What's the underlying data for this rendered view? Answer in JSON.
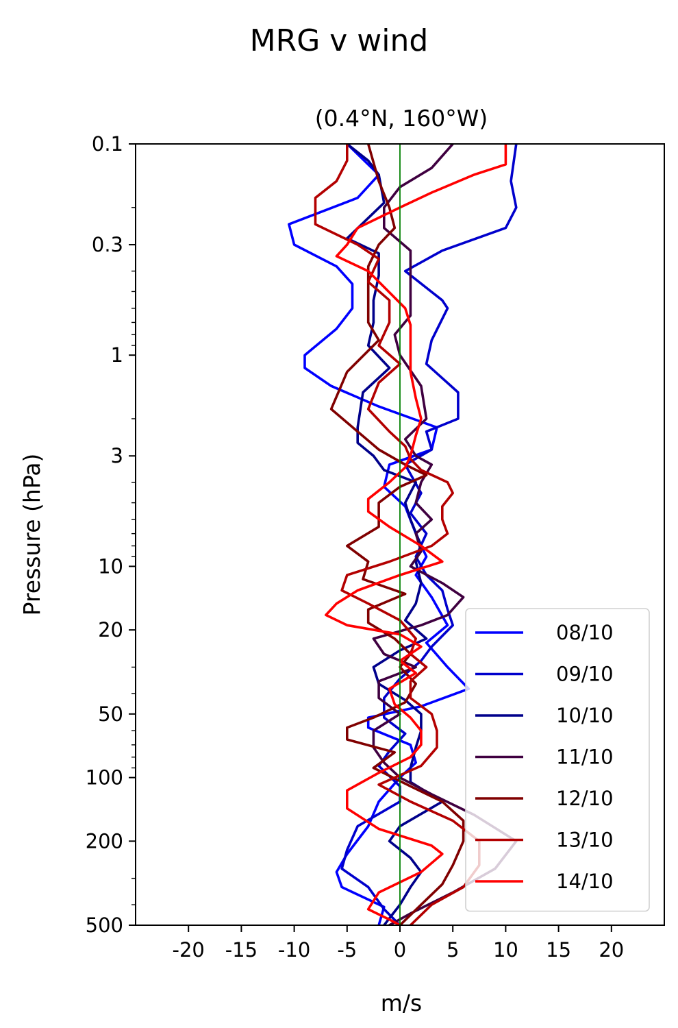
{
  "chart_data": {
    "type": "line",
    "title": "MRG v wind",
    "subtitle": "(0.4°N, 160°W)",
    "xlabel": "m/s",
    "ylabel": "Pressure (hPa)",
    "xlim": [
      -25,
      25
    ],
    "ylim": [
      500,
      0.1
    ],
    "y_scale": "log",
    "x_ticks": [
      -20,
      -15,
      -10,
      -5,
      0,
      5,
      10,
      15,
      20
    ],
    "x_tick_labels": [
      "-20",
      "-15",
      "-10",
      "-5",
      "0",
      "5",
      "10",
      "15",
      "20"
    ],
    "y_ticks": [
      0.1,
      0.3,
      1,
      3,
      10,
      20,
      50,
      100,
      200,
      500
    ],
    "y_tick_labels": [
      "0.1",
      "0.3",
      "1",
      "3",
      "10",
      "20",
      "50",
      "100",
      "200",
      "500"
    ],
    "zero_line_color": "#008000",
    "legend": {
      "position": "lower-right"
    },
    "series": [
      {
        "name": "08/10",
        "color": "#0000ff",
        "points": [
          [
            -5,
            0.1
          ],
          [
            -2,
            0.14
          ],
          [
            -4,
            0.18
          ],
          [
            -10.5,
            0.24
          ],
          [
            -10,
            0.3
          ],
          [
            -6,
            0.38
          ],
          [
            -4.5,
            0.46
          ],
          [
            -4.5,
            0.6
          ],
          [
            -6,
            0.75
          ],
          [
            -9,
            1
          ],
          [
            -9,
            1.15
          ],
          [
            -6.5,
            1.4
          ],
          [
            -2,
            1.75
          ],
          [
            3.5,
            2.2
          ],
          [
            3,
            2.8
          ],
          [
            -1,
            3.3
          ],
          [
            -1.5,
            4.2
          ],
          [
            0.5,
            5.2
          ],
          [
            1.5,
            7
          ],
          [
            2.5,
            9
          ],
          [
            1.5,
            11
          ],
          [
            3,
            14
          ],
          [
            4.5,
            19
          ],
          [
            2.5,
            23
          ],
          [
            4.5,
            30
          ],
          [
            6.5,
            38
          ],
          [
            2,
            46
          ],
          [
            -3,
            52
          ],
          [
            -3,
            58
          ],
          [
            1,
            70
          ],
          [
            1.5,
            85
          ],
          [
            0,
            100
          ],
          [
            -2,
            130
          ],
          [
            -3,
            170
          ],
          [
            -5,
            230
          ],
          [
            -6,
            280
          ],
          [
            -5.5,
            330
          ],
          [
            -1.5,
            410
          ],
          [
            -2,
            500
          ]
        ]
      },
      {
        "name": "09/10",
        "color": "#0000cc",
        "points": [
          [
            11,
            0.1
          ],
          [
            10.5,
            0.15
          ],
          [
            11,
            0.2
          ],
          [
            10,
            0.25
          ],
          [
            4,
            0.32
          ],
          [
            0.5,
            0.4
          ],
          [
            4,
            0.55
          ],
          [
            4.5,
            0.6
          ],
          [
            3,
            0.85
          ],
          [
            2.5,
            1.1
          ],
          [
            5.5,
            1.5
          ],
          [
            5.5,
            2
          ],
          [
            2.5,
            2.3
          ],
          [
            3,
            2.8
          ],
          [
            0.5,
            3.3
          ],
          [
            2,
            4.5
          ],
          [
            1,
            5.6
          ],
          [
            2.5,
            7
          ],
          [
            1.5,
            9
          ],
          [
            2.5,
            11
          ],
          [
            4,
            13
          ],
          [
            4.5,
            16
          ],
          [
            5,
            19
          ],
          [
            3,
            24
          ],
          [
            2,
            28
          ],
          [
            0,
            34
          ],
          [
            -1.5,
            42
          ],
          [
            -1.5,
            52
          ],
          [
            0.5,
            62
          ],
          [
            -1,
            75
          ],
          [
            -2,
            88
          ],
          [
            0,
            110
          ],
          [
            0,
            130
          ],
          [
            -4,
            170
          ],
          [
            -5,
            220
          ],
          [
            -5.5,
            270
          ],
          [
            -3,
            330
          ],
          [
            -1.5,
            420
          ],
          [
            0,
            500
          ]
        ]
      },
      {
        "name": "10/10",
        "color": "#00008b",
        "points": [
          [
            -5,
            0.1
          ],
          [
            -3,
            0.12
          ],
          [
            -2,
            0.14
          ],
          [
            -1.5,
            0.19
          ],
          [
            -5,
            0.28
          ],
          [
            -2,
            0.33
          ],
          [
            -2,
            0.42
          ],
          [
            -2.5,
            0.55
          ],
          [
            -2.5,
            0.7
          ],
          [
            -3,
            0.9
          ],
          [
            -1,
            1.15
          ],
          [
            -3.5,
            1.5
          ],
          [
            -4,
            2.2
          ],
          [
            -4,
            2.6
          ],
          [
            -2.5,
            3
          ],
          [
            -1.5,
            3.5
          ],
          [
            1.5,
            4
          ],
          [
            0.5,
            5
          ],
          [
            1,
            6
          ],
          [
            2,
            8
          ],
          [
            1.5,
            9.5
          ],
          [
            2,
            12
          ],
          [
            1.5,
            15
          ],
          [
            0.5,
            18
          ],
          [
            2.5,
            22
          ],
          [
            0,
            25
          ],
          [
            -2.5,
            30
          ],
          [
            -2,
            36
          ],
          [
            0.5,
            43
          ],
          [
            2,
            50
          ],
          [
            2,
            60
          ],
          [
            1.5,
            72
          ],
          [
            1,
            90
          ],
          [
            1,
            105
          ],
          [
            4,
            130
          ],
          [
            0,
            170
          ],
          [
            -1,
            200
          ],
          [
            1,
            240
          ],
          [
            2,
            280
          ],
          [
            1,
            330
          ],
          [
            0,
            400
          ],
          [
            -1.5,
            500
          ]
        ]
      },
      {
        "name": "11/10",
        "color": "#3f0040",
        "points": [
          [
            5,
            0.1
          ],
          [
            3,
            0.13
          ],
          [
            0,
            0.16
          ],
          [
            -1.5,
            0.2
          ],
          [
            -1.5,
            0.25
          ],
          [
            1,
            0.32
          ],
          [
            1,
            0.42
          ],
          [
            1,
            0.5
          ],
          [
            1,
            0.65
          ],
          [
            -0.5,
            0.8
          ],
          [
            0,
            1
          ],
          [
            2,
            1.4
          ],
          [
            2.5,
            2
          ],
          [
            0.5,
            2.5
          ],
          [
            1.5,
            3
          ],
          [
            3,
            3.3
          ],
          [
            2,
            4
          ],
          [
            1.5,
            5
          ],
          [
            3,
            6
          ],
          [
            1.5,
            7
          ],
          [
            2,
            8.5
          ],
          [
            1,
            10
          ],
          [
            4,
            12
          ],
          [
            6,
            14
          ],
          [
            4.5,
            17
          ],
          [
            2,
            19
          ],
          [
            -2.5,
            22
          ],
          [
            -1.5,
            26
          ],
          [
            1.5,
            30
          ],
          [
            -2,
            35
          ],
          [
            -2,
            42
          ],
          [
            0,
            50
          ],
          [
            -2.5,
            60
          ],
          [
            -2.5,
            72
          ],
          [
            -1.5,
            85
          ],
          [
            0,
            100
          ],
          [
            3,
            120
          ],
          [
            7,
            150
          ],
          [
            11,
            200
          ],
          [
            9,
            270
          ],
          [
            5,
            350
          ],
          [
            1,
            440
          ],
          [
            -1,
            500
          ]
        ]
      },
      {
        "name": "12/10",
        "color": "#800000",
        "points": [
          [
            -3,
            0.1
          ],
          [
            -2,
            0.15
          ],
          [
            -1,
            0.2
          ],
          [
            -0.5,
            0.25
          ],
          [
            -2,
            0.3
          ],
          [
            -3,
            0.38
          ],
          [
            -3,
            0.45
          ],
          [
            -3,
            0.55
          ],
          [
            -3,
            0.7
          ],
          [
            -2,
            0.85
          ],
          [
            -5,
            1.2
          ],
          [
            -6.5,
            1.8
          ],
          [
            -4,
            2.3
          ],
          [
            -2,
            2.8
          ],
          [
            0.5,
            3.3
          ],
          [
            2.5,
            3.7
          ],
          [
            0,
            4.2
          ],
          [
            -2,
            5
          ],
          [
            -2,
            6.5
          ],
          [
            -5,
            8
          ],
          [
            -3,
            9.5
          ],
          [
            -3.5,
            11.5
          ],
          [
            0.5,
            13.5
          ],
          [
            -3,
            16
          ],
          [
            -3,
            18.5
          ],
          [
            -0.5,
            22
          ],
          [
            1,
            26
          ],
          [
            0,
            30
          ],
          [
            1.5,
            36
          ],
          [
            0.5,
            44
          ],
          [
            -2.5,
            52
          ],
          [
            -5,
            58
          ],
          [
            -5,
            66
          ],
          [
            -0.5,
            76
          ],
          [
            -2.5,
            90
          ],
          [
            1,
            110
          ],
          [
            4,
            130
          ],
          [
            6,
            160
          ],
          [
            6,
            200
          ],
          [
            5,
            260
          ],
          [
            4,
            320
          ],
          [
            2,
            400
          ],
          [
            0,
            500
          ]
        ]
      },
      {
        "name": "13/10",
        "color": "#b30000",
        "points": [
          [
            -5,
            0.1
          ],
          [
            -5,
            0.12
          ],
          [
            -6,
            0.15
          ],
          [
            -8,
            0.18
          ],
          [
            -8,
            0.24
          ],
          [
            -4,
            0.3
          ],
          [
            -2,
            0.35
          ],
          [
            -3,
            0.45
          ],
          [
            -1,
            0.55
          ],
          [
            -1,
            0.7
          ],
          [
            -2,
            0.9
          ],
          [
            0,
            1.1
          ],
          [
            -2,
            1.35
          ],
          [
            -3,
            1.8
          ],
          [
            -1,
            2.3
          ],
          [
            0.5,
            2.7
          ],
          [
            1,
            3.1
          ],
          [
            2,
            3.5
          ],
          [
            4.5,
            4
          ],
          [
            5,
            4.5
          ],
          [
            4,
            5.2
          ],
          [
            4,
            6
          ],
          [
            4.5,
            7
          ],
          [
            3,
            8
          ],
          [
            -1,
            9.5
          ],
          [
            -5,
            11
          ],
          [
            -5.5,
            13
          ],
          [
            -3,
            15
          ],
          [
            0,
            18
          ],
          [
            1.5,
            22
          ],
          [
            1,
            26
          ],
          [
            2.5,
            30
          ],
          [
            1,
            35
          ],
          [
            1,
            42
          ],
          [
            3,
            50
          ],
          [
            3.5,
            60
          ],
          [
            3.5,
            72
          ],
          [
            2,
            88
          ],
          [
            -2,
            108
          ],
          [
            1,
            130
          ],
          [
            5,
            160
          ],
          [
            7.5,
            200
          ],
          [
            7.5,
            260
          ],
          [
            6,
            330
          ],
          [
            3,
            400
          ],
          [
            1,
            500
          ]
        ]
      },
      {
        "name": "14/10",
        "color": "#ff0000",
        "points": [
          [
            10,
            0.1
          ],
          [
            10,
            0.125
          ],
          [
            7,
            0.14
          ],
          [
            3,
            0.17
          ],
          [
            0,
            0.2
          ],
          [
            -4,
            0.25
          ],
          [
            -5,
            0.3
          ],
          [
            -6,
            0.34
          ],
          [
            -3,
            0.4
          ],
          [
            0.5,
            0.6
          ],
          [
            1,
            0.72
          ],
          [
            1,
            0.8
          ],
          [
            1,
            1.2
          ],
          [
            1.5,
            1.6
          ],
          [
            2,
            2
          ],
          [
            1.5,
            2.4
          ],
          [
            1,
            3
          ],
          [
            0.5,
            3.4
          ],
          [
            -1,
            4
          ],
          [
            -3,
            4.8
          ],
          [
            -3,
            5.5
          ],
          [
            -1,
            6.5
          ],
          [
            2,
            8
          ],
          [
            4,
            9.5
          ],
          [
            0,
            11
          ],
          [
            -4,
            13
          ],
          [
            -6,
            15
          ],
          [
            -7,
            17
          ],
          [
            -5,
            19
          ],
          [
            0,
            21
          ],
          [
            2,
            24
          ],
          [
            0,
            28
          ],
          [
            1.5,
            32
          ],
          [
            -1,
            38
          ],
          [
            -0.5,
            45
          ],
          [
            1,
            52
          ],
          [
            2,
            60
          ],
          [
            2,
            70
          ],
          [
            1,
            80
          ],
          [
            -2,
            95
          ],
          [
            -5,
            115
          ],
          [
            -5,
            140
          ],
          [
            -2,
            175
          ],
          [
            3,
            210
          ],
          [
            4,
            230
          ],
          [
            2,
            280
          ],
          [
            -2,
            350
          ],
          [
            -3,
            420
          ],
          [
            -1,
            470
          ],
          [
            0,
            500
          ]
        ]
      }
    ]
  }
}
